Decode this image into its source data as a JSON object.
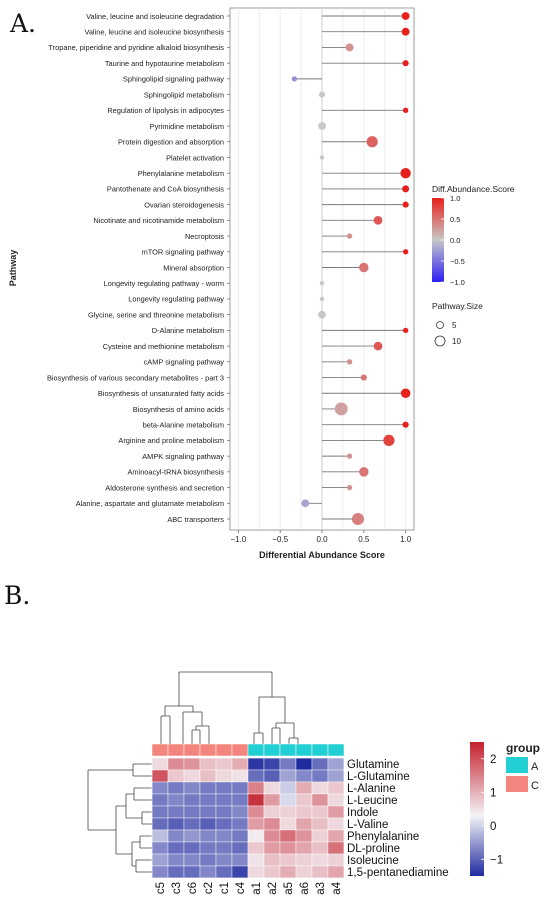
{
  "panel_a_letter": "A.",
  "panel_b_letter": "B.",
  "chart_data": [
    {
      "type": "scatter",
      "xlabel": "Differential Abundance Score",
      "ylabel": "Pathway",
      "xlim": [
        -1.1,
        1.1
      ],
      "x_ticks": [
        -1.0,
        -0.5,
        0.0,
        0.5,
        1.0
      ],
      "x_tick_labels": [
        "−1.0",
        "−0.5",
        "0.0",
        "0.5",
        "1.0"
      ],
      "grid": true,
      "color_legend": {
        "title": "Diff.Abundance.Score",
        "ticks": [
          "1.0",
          "0.5",
          "0.0",
          "−0.5",
          "−1.0"
        ],
        "low_color": "#2a1ef2",
        "mid_color": "#c8c8c8",
        "high_color": "#e8201c"
      },
      "size_legend": {
        "title": "Pathway.Size",
        "labels": [
          "5",
          "10"
        ]
      },
      "points": [
        {
          "pathway": "Valine, leucine and isoleucine degradation",
          "score": 1.0,
          "size": 6
        },
        {
          "pathway": "Valine, leucine and isoleucine biosynthesis",
          "score": 1.0,
          "size": 6
        },
        {
          "pathway": "Tropane, piperidine and pyridine alkaloid biosynthesis",
          "score": 0.33,
          "size": 6
        },
        {
          "pathway": "Taurine and hypotaurine metabolism",
          "score": 1.0,
          "size": 4
        },
        {
          "pathway": "Sphingolipid signaling pathway",
          "score": -0.33,
          "size": 3
        },
        {
          "pathway": "Sphingolipid metabolism",
          "score": 0.0,
          "size": 4
        },
        {
          "pathway": "Regulation of lipolysis in adipocytes",
          "score": 1.0,
          "size": 3
        },
        {
          "pathway": "Pyrimidine metabolism",
          "score": 0.0,
          "size": 6
        },
        {
          "pathway": "Protein digestion and absorption",
          "score": 0.6,
          "size": 10
        },
        {
          "pathway": "Platelet activation",
          "score": 0.0,
          "size": 2
        },
        {
          "pathway": "Phenylalanine metabolism",
          "score": 1.0,
          "size": 9
        },
        {
          "pathway": "Pantothenate and CoA biosynthesis",
          "score": 1.0,
          "size": 5
        },
        {
          "pathway": "Ovarian steroidogenesis",
          "score": 1.0,
          "size": 4
        },
        {
          "pathway": "Nicotinate and nicotinamide metabolism",
          "score": 0.67,
          "size": 7
        },
        {
          "pathway": "Necroptosis",
          "score": 0.33,
          "size": 3
        },
        {
          "pathway": "mTOR signaling pathway",
          "score": 1.0,
          "size": 3
        },
        {
          "pathway": "Mineral absorption",
          "score": 0.5,
          "size": 8
        },
        {
          "pathway": "Longevity regulating pathway - worm",
          "score": 0.0,
          "size": 2
        },
        {
          "pathway": "Longevity regulating pathway",
          "score": 0.0,
          "size": 2
        },
        {
          "pathway": "Glycine, serine and threonine metabolism",
          "score": 0.0,
          "size": 6
        },
        {
          "pathway": "D-Alanine metabolism",
          "score": 1.0,
          "size": 3
        },
        {
          "pathway": "Cysteine and methionine metabolism",
          "score": 0.67,
          "size": 7
        },
        {
          "pathway": "cAMP signaling pathway",
          "score": 0.33,
          "size": 3
        },
        {
          "pathway": "Biosynthesis of various secondary metabolites - part 3",
          "score": 0.5,
          "size": 4
        },
        {
          "pathway": "Biosynthesis of unsaturated fatty acids",
          "score": 1.0,
          "size": 8
        },
        {
          "pathway": "Biosynthesis of amino acids",
          "score": 0.23,
          "size": 12
        },
        {
          "pathway": "beta-Alanine metabolism",
          "score": 1.0,
          "size": 4
        },
        {
          "pathway": "Arginine and proline metabolism",
          "score": 0.8,
          "size": 10
        },
        {
          "pathway": "AMPK signaling pathway",
          "score": 0.33,
          "size": 3
        },
        {
          "pathway": "Aminoacyl-tRNA biosynthesis",
          "score": 0.5,
          "size": 8
        },
        {
          "pathway": "Aldosterone synthesis and secretion",
          "score": 0.33,
          "size": 3
        },
        {
          "pathway": "Alanine, aspartate and glutamate metabolism",
          "score": -0.2,
          "size": 6
        },
        {
          "pathway": "ABC transporters",
          "score": 0.43,
          "size": 11
        }
      ]
    },
    {
      "type": "heatmap",
      "columns": [
        "c5",
        "c3",
        "c6",
        "c2",
        "c1",
        "c4",
        "a1",
        "a2",
        "a5",
        "a6",
        "a3",
        "a4"
      ],
      "column_groups": [
        "C",
        "C",
        "C",
        "C",
        "C",
        "C",
        "A",
        "A",
        "A",
        "A",
        "A",
        "A"
      ],
      "rows": [
        "Glutamine",
        "L-Glutamine",
        "L-Alanine",
        "L-Leucine",
        "Indole",
        "L-Valine",
        "Phenylalanine",
        "DL-proline",
        "Isoleucine",
        "1,5-pentanediamine"
      ],
      "values": [
        [
          0.3,
          1.2,
          1.1,
          0.6,
          0.5,
          0.8,
          -1.4,
          -1.3,
          -0.9,
          -1.6,
          -1.0,
          -0.6
        ],
        [
          1.8,
          0.5,
          0.3,
          0.6,
          0.3,
          0.2,
          -1.0,
          -1.1,
          -0.6,
          -0.8,
          -0.9,
          -0.6
        ],
        [
          -0.8,
          -0.9,
          -0.8,
          -0.9,
          -0.9,
          -0.9,
          1.3,
          0.3,
          -0.3,
          0.8,
          0.3,
          0.5
        ],
        [
          -0.9,
          -0.8,
          -0.9,
          -0.9,
          -0.9,
          -0.9,
          2.2,
          1.0,
          -0.2,
          0.5,
          1.1,
          0.3
        ],
        [
          -0.9,
          -0.9,
          -0.9,
          -0.9,
          -0.9,
          -0.8,
          1.2,
          0.4,
          0.4,
          0.5,
          0.5,
          1.0
        ],
        [
          -1.0,
          -1.1,
          -1.0,
          -1.1,
          -1.0,
          -0.9,
          1.0,
          1.2,
          0.3,
          0.9,
          0.6,
          0.3
        ],
        [
          -0.4,
          -0.8,
          -0.7,
          -0.8,
          -0.8,
          -0.9,
          0.1,
          1.2,
          1.5,
          1.1,
          0.4,
          0.9
        ],
        [
          -0.8,
          -1.0,
          -1.0,
          -0.9,
          -0.9,
          -1.0,
          0.5,
          1.0,
          1.1,
          0.9,
          0.6,
          1.5
        ],
        [
          -0.6,
          -0.8,
          -0.8,
          -0.9,
          -0.8,
          -0.8,
          0.2,
          0.6,
          0.5,
          0.4,
          0.3,
          0.4
        ],
        [
          -0.8,
          -1.0,
          -1.0,
          -0.8,
          -1.0,
          -1.3,
          0.3,
          0.5,
          0.8,
          0.4,
          0.6,
          0.9
        ]
      ],
      "color_legend": {
        "ticks": [
          "2",
          "1",
          "0",
          "−1"
        ],
        "low_color": "#1f2a9e",
        "mid_color": "#f4f4f7",
        "high_color": "#c4202e"
      },
      "group_legend": {
        "title": "group",
        "entries": [
          {
            "label": "A",
            "color": "#22cfd3"
          },
          {
            "label": "C",
            "color": "#f4847e"
          }
        ]
      }
    }
  ]
}
